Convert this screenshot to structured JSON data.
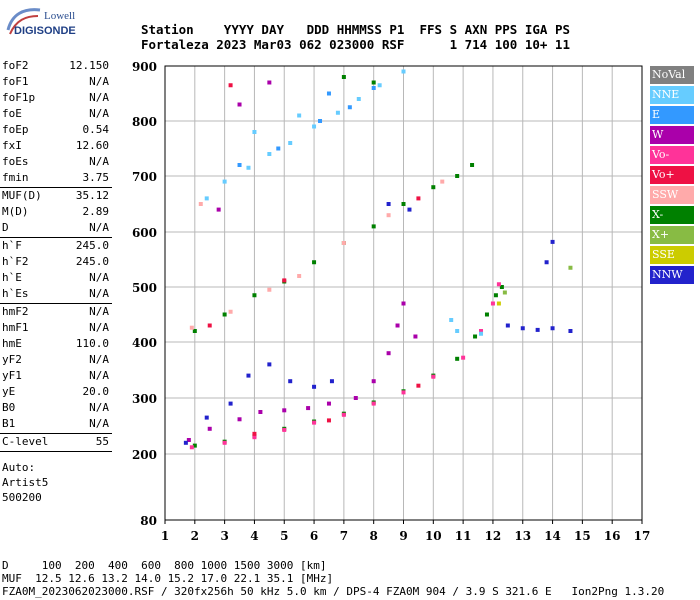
{
  "logo": {
    "line1": "Lowell",
    "line2": "DIGISONDE"
  },
  "header": {
    "labels": [
      "Station",
      "YYYY DAY",
      "DDD HHMMSS P1",
      "FFS S AXN PPS IGA PS"
    ],
    "values": [
      "Fortaleza",
      "2023 Mar03",
      "062 023000 RSF",
      "1 714 100 10+ 11"
    ]
  },
  "params": {
    "group1": [
      {
        "k": "foF2",
        "v": "12.150"
      },
      {
        "k": "foF1",
        "v": "N/A"
      },
      {
        "k": "foF1p",
        "v": "N/A"
      },
      {
        "k": "foE",
        "v": "N/A"
      },
      {
        "k": "foEp",
        "v": "0.54"
      },
      {
        "k": "fxI",
        "v": "12.60"
      },
      {
        "k": "foEs",
        "v": "N/A"
      },
      {
        "k": "fmin",
        "v": "3.75"
      }
    ],
    "group2": [
      {
        "k": "MUF(D)",
        "v": "35.12"
      },
      {
        "k": "M(D)",
        "v": "2.89"
      },
      {
        "k": "D",
        "v": "N/A"
      }
    ],
    "group3": [
      {
        "k": "h`F",
        "v": "245.0"
      },
      {
        "k": "h`F2",
        "v": "245.0"
      },
      {
        "k": "h`E",
        "v": "N/A"
      },
      {
        "k": "h`Es",
        "v": "N/A"
      }
    ],
    "group4": [
      {
        "k": "hmF2",
        "v": "N/A"
      },
      {
        "k": "hmF1",
        "v": "N/A"
      },
      {
        "k": "hmE",
        "v": "110.0"
      },
      {
        "k": "yF2",
        "v": "N/A"
      },
      {
        "k": "yF1",
        "v": "N/A"
      },
      {
        "k": "yE",
        "v": "20.0"
      },
      {
        "k": "B0",
        "v": "N/A"
      },
      {
        "k": "B1",
        "v": "N/A"
      }
    ],
    "group5": [
      {
        "k": "C-level",
        "v": "55"
      }
    ],
    "auto": [
      "Auto:",
      "Artist5",
      "500200"
    ]
  },
  "legend": [
    {
      "label": "NoVal",
      "color": "#808080"
    },
    {
      "label": "NNE",
      "color": "#66ccff"
    },
    {
      "label": "E",
      "color": "#3399ff"
    },
    {
      "label": "W",
      "color": "#aa00aa"
    },
    {
      "label": "Vo-",
      "color": "#ff3399"
    },
    {
      "label": "Vo+",
      "color": "#ee1144"
    },
    {
      "label": "SSW",
      "color": "#ffaaaa"
    },
    {
      "label": "X-",
      "color": "#008000"
    },
    {
      "label": "X+",
      "color": "#88bb44"
    },
    {
      "label": "SSE",
      "color": "#cccc00"
    },
    {
      "label": "NNW",
      "color": "#2222cc"
    }
  ],
  "chart_data": {
    "type": "scatter",
    "xlabel": "",
    "ylabel": "",
    "xlim": [
      1,
      17
    ],
    "ylim": [
      80,
      900
    ],
    "x_ticks": [
      "1",
      "2",
      "3",
      "4",
      "5",
      "6",
      "7",
      "8",
      "9",
      "10",
      "11",
      "12",
      "13",
      "14",
      "15",
      "16",
      "17"
    ],
    "y_ticks": [
      "80",
      "200",
      "300",
      "400",
      "500",
      "600",
      "700",
      "800",
      "900"
    ],
    "y_tick_values": [
      80,
      200,
      300,
      400,
      500,
      600,
      700,
      800,
      900
    ],
    "grid": true,
    "series": [
      {
        "name": "X-",
        "color": "#008000",
        "points": [
          [
            2.0,
            215
          ],
          [
            3.0,
            222
          ],
          [
            4.0,
            232
          ],
          [
            5.0,
            245
          ],
          [
            6.0,
            258
          ],
          [
            7.0,
            272
          ],
          [
            8.0,
            292
          ],
          [
            9.0,
            312
          ],
          [
            10.0,
            340
          ],
          [
            10.8,
            370
          ],
          [
            11.4,
            410
          ],
          [
            11.8,
            450
          ],
          [
            12.1,
            485
          ],
          [
            12.3,
            500
          ]
        ]
      },
      {
        "name": "Vo-",
        "color": "#ff3399",
        "points": [
          [
            1.9,
            212
          ],
          [
            3.0,
            220
          ],
          [
            4.0,
            230
          ],
          [
            5.0,
            243
          ],
          [
            6.0,
            256
          ],
          [
            7.0,
            270
          ],
          [
            8.0,
            290
          ],
          [
            9.0,
            310
          ],
          [
            10.0,
            338
          ],
          [
            11.0,
            372
          ],
          [
            11.6,
            420
          ],
          [
            12.0,
            470
          ],
          [
            12.2,
            505
          ]
        ]
      },
      {
        "name": "W",
        "color": "#aa00aa",
        "points": [
          [
            1.8,
            225
          ],
          [
            2.5,
            245
          ],
          [
            3.5,
            262
          ],
          [
            4.2,
            275
          ],
          [
            5.0,
            278
          ],
          [
            5.8,
            282
          ],
          [
            6.5,
            290
          ],
          [
            7.4,
            300
          ],
          [
            8.0,
            330
          ],
          [
            8.5,
            380
          ],
          [
            8.8,
            430
          ],
          [
            9.0,
            470
          ],
          [
            9.4,
            410
          ],
          [
            2.8,
            640
          ],
          [
            3.5,
            830
          ],
          [
            4.5,
            870
          ]
        ]
      },
      {
        "name": "NNW",
        "color": "#2222cc",
        "points": [
          [
            1.7,
            220
          ],
          [
            2.4,
            265
          ],
          [
            3.2,
            290
          ],
          [
            3.8,
            340
          ],
          [
            4.5,
            360
          ],
          [
            5.2,
            330
          ],
          [
            6.0,
            320
          ],
          [
            6.6,
            330
          ],
          [
            12.5,
            430
          ],
          [
            13.0,
            425
          ],
          [
            13.5,
            422
          ],
          [
            14.0,
            425
          ],
          [
            14.6,
            420
          ],
          [
            14.0,
            582
          ],
          [
            13.8,
            545
          ],
          [
            8.5,
            650
          ],
          [
            9.2,
            640
          ]
        ]
      },
      {
        "name": "NNE",
        "color": "#66ccff",
        "points": [
          [
            2.4,
            660
          ],
          [
            3.0,
            690
          ],
          [
            3.8,
            715
          ],
          [
            4.5,
            740
          ],
          [
            5.2,
            760
          ],
          [
            6.0,
            790
          ],
          [
            6.8,
            815
          ],
          [
            7.5,
            840
          ],
          [
            8.2,
            865
          ],
          [
            9.0,
            890
          ],
          [
            4.0,
            780
          ],
          [
            5.5,
            810
          ],
          [
            10.6,
            440
          ],
          [
            10.8,
            420
          ],
          [
            11.6,
            415
          ]
        ]
      },
      {
        "name": "E",
        "color": "#3399ff",
        "points": [
          [
            3.5,
            720
          ],
          [
            4.8,
            750
          ],
          [
            6.2,
            800
          ],
          [
            7.2,
            825
          ],
          [
            8.0,
            860
          ],
          [
            6.5,
            850
          ]
        ]
      },
      {
        "name": "X-echo",
        "color": "#008000",
        "points": [
          [
            2.0,
            420
          ],
          [
            3.0,
            450
          ],
          [
            4.0,
            485
          ],
          [
            5.0,
            510
          ],
          [
            6.0,
            545
          ],
          [
            7.0,
            580
          ],
          [
            8.0,
            610
          ],
          [
            9.0,
            650
          ],
          [
            10.0,
            680
          ],
          [
            10.8,
            700
          ],
          [
            11.3,
            720
          ],
          [
            7.0,
            880
          ],
          [
            8.0,
            870
          ]
        ]
      },
      {
        "name": "SSW",
        "color": "#ffaaaa",
        "points": [
          [
            1.9,
            426
          ],
          [
            3.2,
            455
          ],
          [
            4.5,
            495
          ],
          [
            5.5,
            520
          ],
          [
            7.0,
            580
          ],
          [
            8.5,
            630
          ],
          [
            10.3,
            690
          ],
          [
            2.2,
            650
          ]
        ]
      },
      {
        "name": "Vo+",
        "color": "#ee1144",
        "points": [
          [
            4.0,
            236
          ],
          [
            6.5,
            260
          ],
          [
            9.5,
            322
          ],
          [
            2.5,
            430
          ],
          [
            5.0,
            512
          ],
          [
            9.5,
            660
          ],
          [
            3.2,
            865
          ]
        ]
      },
      {
        "name": "X+",
        "color": "#88bb44",
        "points": [
          [
            12.4,
            490
          ],
          [
            14.6,
            535
          ]
        ]
      },
      {
        "name": "SSE",
        "color": "#cccc00",
        "points": [
          [
            12.2,
            470
          ]
        ]
      }
    ]
  },
  "footer": {
    "d_row": "D     100  200  400  600  800 1000 1500 3000 [km]",
    "muf_row": "MUF  12.5 12.6 13.2 14.0 15.2 17.0 22.1 35.1 [MHz]",
    "file_row": "FZA0M_2023062023000.RSF / 320fx256h 50 kHz 5.0 km / DPS-4 FZA0M 904 / 3.9 S 321.6 E   Ion2Png 1.3.20"
  }
}
